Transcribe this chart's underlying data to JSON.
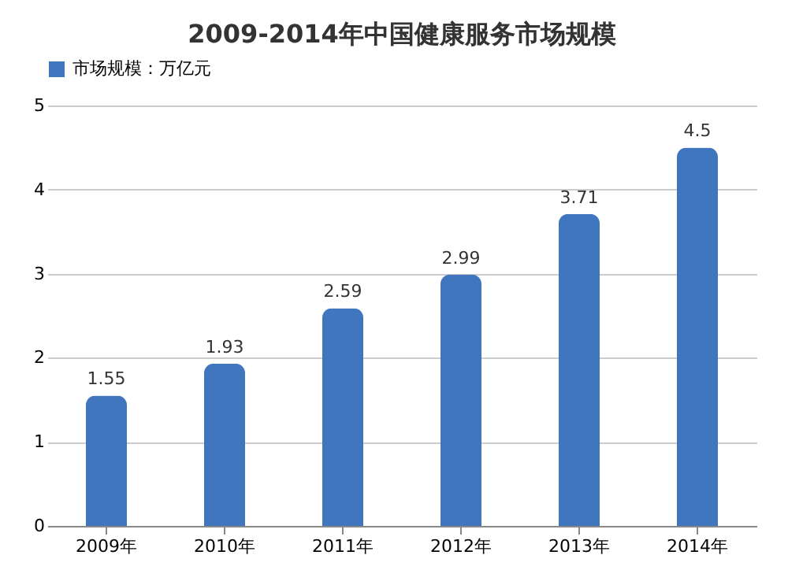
{
  "chart_data": {
    "type": "bar",
    "title": "2009-2014年中国健康服务市场规模",
    "categories": [
      "2009年",
      "2010年",
      "2011年",
      "2012年",
      "2013年",
      "2014年"
    ],
    "series": [
      {
        "name": "市场规模：万亿元",
        "color": "#3f76bd",
        "values": [
          1.55,
          1.93,
          2.59,
          2.99,
          3.71,
          4.5
        ]
      }
    ],
    "ylim": [
      0,
      5
    ],
    "yticks": [
      0,
      1,
      2,
      3,
      4,
      5
    ],
    "grid": "y",
    "legend": "top",
    "data_labels": true
  }
}
